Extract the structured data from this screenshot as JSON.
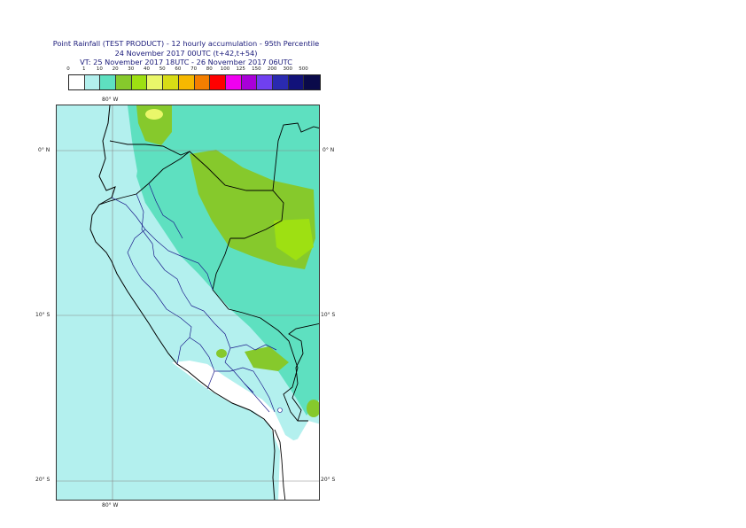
{
  "title": {
    "line1": "Point Rainfall (TEST PRODUCT) - 12 hourly accumulation - 95th Percentile",
    "line2": "24 November 2017 00UTC (t+42,t+54)",
    "line3": "VT: 25 November 2017 18UTC - 26 November 2017 06UTC"
  },
  "legend": {
    "ticks": [
      "0",
      "1",
      "10",
      "20",
      "30",
      "40",
      "50",
      "60",
      "70",
      "80",
      "100",
      "125",
      "150",
      "200",
      "300",
      "500"
    ],
    "colors": [
      "#ffffff",
      "#b3f0ee",
      "#5ee0c0",
      "#86c92c",
      "#9ee012",
      "#eaf76a",
      "#d8dc16",
      "#f6b800",
      "#f47e00",
      "#ff0000",
      "#f000f0",
      "#a800d8",
      "#7040f0",
      "#2a2ab0",
      "#12127a",
      "#0a0a4a"
    ]
  },
  "map": {
    "lon_label_top": "80° W",
    "lon_label_bottom": "80° W",
    "lat_labels_left": [
      "0° N",
      "10° S",
      "20° S"
    ],
    "lat_labels_right": [
      "0° N",
      "10° S",
      "20° S"
    ],
    "colors": {
      "sea": "#b3f0ee",
      "light_rain": "#5ee0c0",
      "moderate_rain": "#86c92c",
      "heavy_rain": "#9ee012",
      "peak_rain": "#eaf76a",
      "dry": "#ffffff",
      "coast": "#000000",
      "border": "#1a1a8a"
    }
  }
}
